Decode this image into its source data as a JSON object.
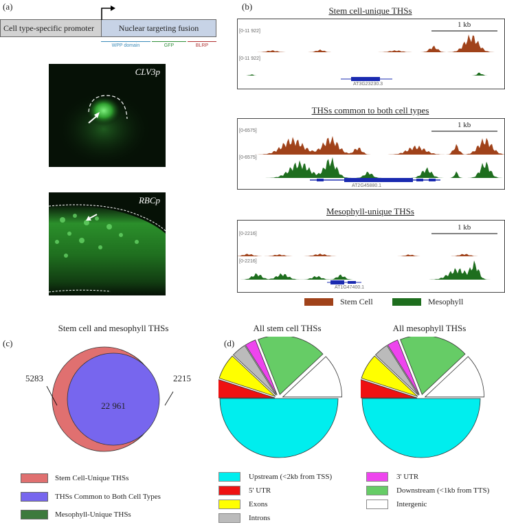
{
  "panel_a": {
    "label": "(a)",
    "promoter": "Cell type-specific promoter",
    "fusion": "Nuclear targeting fusion",
    "domains": [
      {
        "name": "WPP domain",
        "color": "#3a8ab8"
      },
      {
        "name": "GFP",
        "color": "#2f8f3a"
      },
      {
        "name": "BLRP",
        "color": "#b03030"
      }
    ],
    "image1_label": "CLV3p",
    "image2_label": "RBCp"
  },
  "panel_b": {
    "label": "(b)",
    "tracks": [
      {
        "title": "Stem cell-unique THSs",
        "scale": "1 kb",
        "range_top": "[0-11 922]",
        "range_bottom": "[0-11 922]",
        "gene": "AT3G23230.3"
      },
      {
        "title": "THSs common to both cell types",
        "scale": "1 kb",
        "range_top": "[0-6575]",
        "range_bottom": "[0-6575]",
        "gene": "AT2G45880.1"
      },
      {
        "title": "Mesophyll-unique THSs",
        "scale": "1 kb",
        "range_top": "[0-2216]",
        "range_bottom": "[0-2216]",
        "gene": "AT1G47400.1"
      }
    ],
    "legend": [
      {
        "name": "Stem Cell",
        "color": "#a0421a"
      },
      {
        "name": "Mesophyll",
        "color": "#1e6e1e"
      }
    ]
  },
  "colors": {
    "stem": "#a0421a",
    "meso": "#1e6e1e",
    "gene": "#1a2ab0"
  },
  "chart_data": [
    {
      "type": "venn",
      "title": "Stem cell and mesophyll THSs",
      "sets": [
        {
          "name": "Stem Cell-Unique THSs",
          "value": 5283,
          "label": "5283",
          "color": "#e07070"
        },
        {
          "name": "THSs Common to Both Cell Types",
          "value": 22961,
          "label": "22 961",
          "color": "#7766ee"
        },
        {
          "name": "Mesophyll-Unique THSs",
          "value": 2215,
          "label": "2215",
          "color": "#3d7a3d"
        }
      ]
    },
    {
      "type": "pie",
      "title": "All stem cell THSs",
      "categories": [
        "Upstream (<2kb from TSS)",
        "5' UTR",
        "Exons",
        "Introns",
        "3' UTR",
        "Downstream (<1kb from TTS)",
        "Intergenic"
      ],
      "values": [
        50,
        5,
        7,
        4,
        3,
        19,
        12
      ]
    },
    {
      "type": "pie",
      "title": "All mesophyll THSs",
      "categories": [
        "Upstream (<2kb from TSS)",
        "5' UTR",
        "Exons",
        "Introns",
        "3' UTR",
        "Downstream (<1kb from TTS)",
        "Intergenic"
      ],
      "values": [
        50,
        5,
        7,
        4,
        3,
        19,
        12
      ]
    }
  ],
  "panel_c": {
    "label": "(c)"
  },
  "panel_d": {
    "label": "(d)"
  },
  "pie_legend": [
    {
      "name": "Upstream (<2kb from TSS)",
      "color": "#00eeee"
    },
    {
      "name": "5' UTR",
      "color": "#ee1111"
    },
    {
      "name": "Exons",
      "color": "#ffff00"
    },
    {
      "name": "Introns",
      "color": "#bbbbbb"
    },
    {
      "name": "3' UTR",
      "color": "#ee44ee"
    },
    {
      "name": "Downstream (<1kb from TTS)",
      "color": "#66cc66"
    },
    {
      "name": "Intergenic",
      "color": "#ffffff"
    }
  ]
}
